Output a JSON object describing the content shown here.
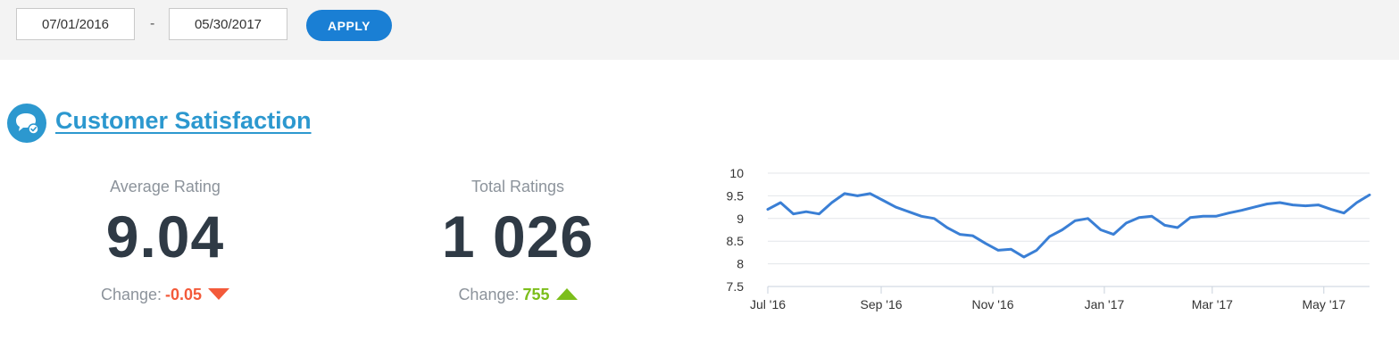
{
  "filters": {
    "date_from": "07/01/2016",
    "separator": "-",
    "date_to": "05/30/2017",
    "apply_label": "APPLY"
  },
  "section": {
    "title": "Customer Satisfaction",
    "icon": "chat-bubble-check-icon"
  },
  "kpis": {
    "average": {
      "label": "Average Rating",
      "value": "9.04",
      "change_label": "Change:",
      "change_value": "-0.05",
      "direction": "down"
    },
    "total": {
      "label": "Total Ratings",
      "value": "1 026",
      "change_label": "Change:",
      "change_value": "755",
      "direction": "up"
    }
  },
  "colors": {
    "accent": "#1a7fd4",
    "title": "#2c98cf",
    "negative": "#f35a3a",
    "positive": "#7cbe1b",
    "line": "#3a7fd5"
  },
  "chart_data": {
    "type": "line",
    "title": "",
    "xlabel": "",
    "ylabel": "",
    "ylim": [
      7.5,
      10
    ],
    "yticks": [
      "7.5",
      "8",
      "8.5",
      "9",
      "9.5",
      "10"
    ],
    "xticks": [
      {
        "label": "Jul '16",
        "date": "2016-07-01"
      },
      {
        "label": "Sep '16",
        "date": "2016-09-01"
      },
      {
        "label": "Nov '16",
        "date": "2016-11-01"
      },
      {
        "label": "Jan '17",
        "date": "2017-01-01"
      },
      {
        "label": "Mar '17",
        "date": "2017-03-01"
      },
      {
        "label": "May '17",
        "date": "2017-05-01"
      }
    ],
    "grid": true,
    "legend": "none",
    "series": [
      {
        "x": [
          "2016-07-01",
          "2016-07-08",
          "2016-07-15",
          "2016-07-22",
          "2016-07-29",
          "2016-08-05",
          "2016-08-12",
          "2016-08-19",
          "2016-08-26",
          "2016-09-02",
          "2016-09-09",
          "2016-09-16",
          "2016-09-23",
          "2016-09-30",
          "2016-10-07",
          "2016-10-14",
          "2016-10-21",
          "2016-10-28",
          "2016-11-04",
          "2016-11-11",
          "2016-11-18",
          "2016-11-25",
          "2016-12-02",
          "2016-12-09",
          "2016-12-16",
          "2016-12-23",
          "2016-12-30",
          "2017-01-06",
          "2017-01-13",
          "2017-01-20",
          "2017-01-27",
          "2017-02-03",
          "2017-02-10",
          "2017-02-17",
          "2017-02-24",
          "2017-03-03",
          "2017-03-10",
          "2017-03-17",
          "2017-03-24",
          "2017-03-31",
          "2017-04-07",
          "2017-04-14",
          "2017-04-21",
          "2017-04-28",
          "2017-05-05",
          "2017-05-12",
          "2017-05-19",
          "2017-05-26"
        ],
        "values": [
          9.2,
          9.35,
          9.1,
          9.15,
          9.1,
          9.35,
          9.55,
          9.5,
          9.55,
          9.4,
          9.25,
          9.15,
          9.05,
          9.0,
          8.8,
          8.65,
          8.62,
          8.45,
          8.3,
          8.32,
          8.15,
          8.3,
          8.6,
          8.75,
          8.95,
          9.0,
          8.75,
          8.65,
          8.9,
          9.02,
          9.05,
          8.85,
          8.8,
          9.02,
          9.05,
          9.05,
          9.12,
          9.18,
          9.25,
          9.32,
          9.35,
          9.3,
          9.28,
          9.3,
          9.2,
          9.12,
          9.35,
          9.52
        ]
      }
    ]
  }
}
